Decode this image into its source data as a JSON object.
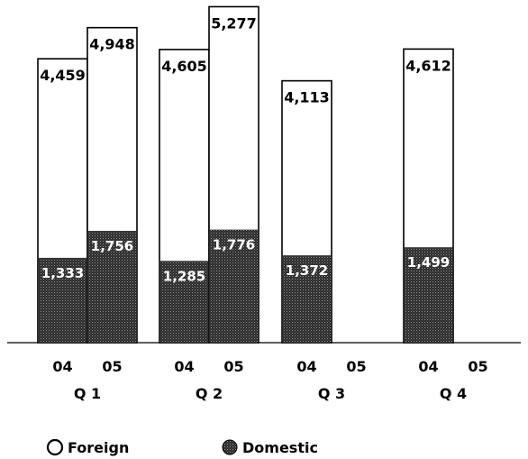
{
  "chart_data": {
    "type": "bar",
    "stacked": true,
    "categories": [
      "Q 1",
      "Q 2",
      "Q 3",
      "Q 4"
    ],
    "sub_categories": [
      "04",
      "05"
    ],
    "series": [
      {
        "name": "Domestic",
        "color": "#555555",
        "values": [
          [
            1333,
            1756
          ],
          [
            1285,
            1776
          ],
          [
            1372,
            null
          ],
          [
            1499,
            null
          ]
        ],
        "labels": [
          [
            "1,333",
            "1,756"
          ],
          [
            "1,285",
            "1,776"
          ],
          [
            "1,372",
            null
          ],
          [
            "1,499",
            null
          ]
        ]
      },
      {
        "name": "Foreign",
        "color": "#ffffff",
        "values": [
          [
            4459,
            4948
          ],
          [
            4605,
            5277
          ],
          [
            4113,
            null
          ],
          [
            4612,
            null
          ]
        ],
        "labels": [
          [
            "4,459",
            "4,948"
          ],
          [
            "4,605",
            "5,277"
          ],
          [
            "4,113",
            null
          ],
          [
            "4,612",
            null
          ]
        ]
      }
    ],
    "legend_position": "bottom",
    "ylim": [
      0,
      6000
    ],
    "grid": false
  }
}
